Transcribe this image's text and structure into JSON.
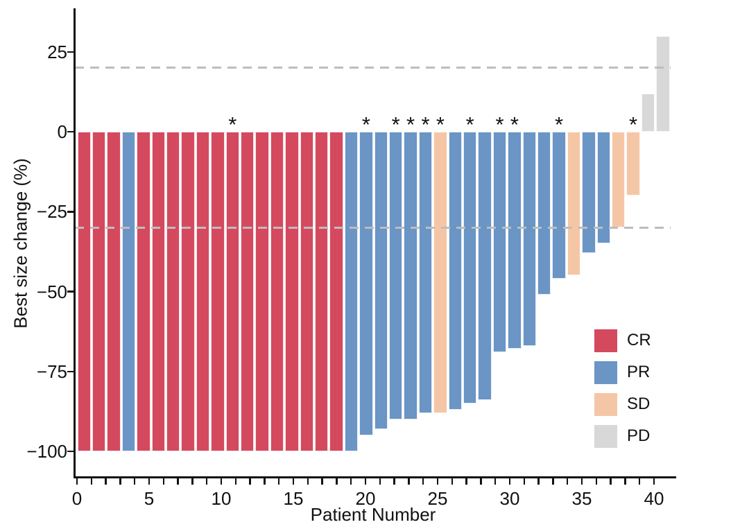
{
  "chart_data": {
    "type": "bar",
    "subtype": "waterfall",
    "title": "",
    "xlabel": "Patient Number",
    "ylabel": "Best size change (%)",
    "x_range": [
      0,
      40
    ],
    "x_major_ticks": [
      0,
      5,
      10,
      15,
      20,
      25,
      30,
      35,
      40
    ],
    "x_minor_tick_every": 1,
    "y_ticks": [
      25,
      0,
      -25,
      -50,
      -75,
      -100
    ],
    "y_tick_labels": [
      "25",
      "0",
      "−25",
      "−50",
      "−75",
      "−100"
    ],
    "ylim": [
      -108,
      38
    ],
    "grid": false,
    "reference_lines": [
      {
        "name": "plus20",
        "value": 20,
        "style": "dashed",
        "color": "#bdbdbd"
      },
      {
        "name": "minus30",
        "value": -30,
        "style": "dashed",
        "color": "#bdbdbd"
      }
    ],
    "annotation_symbol": "*",
    "legend_position": "right-lower",
    "legend": [
      {
        "label": "CR",
        "color": "#d5495e"
      },
      {
        "label": "PR",
        "color": "#6a95c5"
      },
      {
        "label": "SD",
        "color": "#f5c6a6"
      },
      {
        "label": "PD",
        "color": "#d8d8d8"
      }
    ],
    "patients": [
      {
        "patient": 1,
        "response": "CR",
        "value": -100,
        "annotated": false
      },
      {
        "patient": 2,
        "response": "CR",
        "value": -100,
        "annotated": false
      },
      {
        "patient": 3,
        "response": "CR",
        "value": -100,
        "annotated": false
      },
      {
        "patient": 4,
        "response": "PR",
        "value": -100,
        "annotated": false
      },
      {
        "patient": 5,
        "response": "CR",
        "value": -100,
        "annotated": false
      },
      {
        "patient": 6,
        "response": "CR",
        "value": -100,
        "annotated": false
      },
      {
        "patient": 7,
        "response": "CR",
        "value": -100,
        "annotated": false
      },
      {
        "patient": 8,
        "response": "CR",
        "value": -100,
        "annotated": false
      },
      {
        "patient": 9,
        "response": "CR",
        "value": -100,
        "annotated": false
      },
      {
        "patient": 10,
        "response": "CR",
        "value": -100,
        "annotated": false
      },
      {
        "patient": 11,
        "response": "CR",
        "value": -100,
        "annotated": true
      },
      {
        "patient": 12,
        "response": "CR",
        "value": -100,
        "annotated": false
      },
      {
        "patient": 13,
        "response": "CR",
        "value": -100,
        "annotated": false
      },
      {
        "patient": 14,
        "response": "CR",
        "value": -100,
        "annotated": false
      },
      {
        "patient": 15,
        "response": "CR",
        "value": -100,
        "annotated": false
      },
      {
        "patient": 16,
        "response": "CR",
        "value": -100,
        "annotated": false
      },
      {
        "patient": 17,
        "response": "CR",
        "value": -100,
        "annotated": false
      },
      {
        "patient": 18,
        "response": "CR",
        "value": -100,
        "annotated": false
      },
      {
        "patient": 19,
        "response": "PR",
        "value": -100,
        "annotated": false
      },
      {
        "patient": 20,
        "response": "PR",
        "value": -95,
        "annotated": true
      },
      {
        "patient": 21,
        "response": "PR",
        "value": -93,
        "annotated": false
      },
      {
        "patient": 22,
        "response": "PR",
        "value": -90,
        "annotated": true
      },
      {
        "patient": 23,
        "response": "PR",
        "value": -90,
        "annotated": true
      },
      {
        "patient": 24,
        "response": "PR",
        "value": -88,
        "annotated": true
      },
      {
        "patient": 25,
        "response": "SD",
        "value": -88,
        "annotated": true
      },
      {
        "patient": 26,
        "response": "PR",
        "value": -87,
        "annotated": false
      },
      {
        "patient": 27,
        "response": "PR",
        "value": -85,
        "annotated": true
      },
      {
        "patient": 28,
        "response": "PR",
        "value": -84,
        "annotated": false
      },
      {
        "patient": 29,
        "response": "PR",
        "value": -69,
        "annotated": true
      },
      {
        "patient": 30,
        "response": "PR",
        "value": -68,
        "annotated": true
      },
      {
        "patient": 31,
        "response": "PR",
        "value": -67,
        "annotated": false
      },
      {
        "patient": 32,
        "response": "PR",
        "value": -51,
        "annotated": false
      },
      {
        "patient": 33,
        "response": "PR",
        "value": -46,
        "annotated": true
      },
      {
        "patient": 34,
        "response": "SD",
        "value": -45,
        "annotated": false
      },
      {
        "patient": 35,
        "response": "PR",
        "value": -38,
        "annotated": false
      },
      {
        "patient": 36,
        "response": "PR",
        "value": -35,
        "annotated": false
      },
      {
        "patient": 37,
        "response": "SD",
        "value": -30,
        "annotated": false
      },
      {
        "patient": 38,
        "response": "SD",
        "value": -20,
        "annotated": true
      },
      {
        "patient": 39,
        "response": "PD",
        "value": 12,
        "annotated": false
      },
      {
        "patient": 40,
        "response": "PD",
        "value": 30,
        "annotated": false
      }
    ]
  }
}
